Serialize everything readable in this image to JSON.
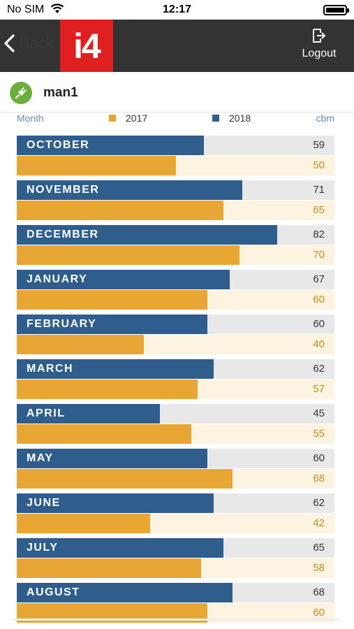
{
  "status_bar": {
    "carrier": "No SIM",
    "time": "12:17"
  },
  "header": {
    "back_label": "Back",
    "logo_text": "i4",
    "logout_label": "Logout"
  },
  "user": {
    "name": "man1"
  },
  "legend": {
    "left_label": "Month",
    "series_2017": "2017",
    "series_2018": "2018",
    "unit": "cbm"
  },
  "colors": {
    "series_2018": "#2f5e8d",
    "series_2017": "#e8a735",
    "header": "#333333",
    "logo": "#e02020",
    "user_icon": "#6cae3c"
  },
  "chart_data": {
    "type": "bar",
    "orientation": "horizontal",
    "unit": "cbm",
    "xlim": [
      0,
      100
    ],
    "categories": [
      "OCTOBER",
      "NOVEMBER",
      "DECEMBER",
      "JANUARY",
      "FEBRUARY",
      "MARCH",
      "APRIL",
      "MAY",
      "JUNE",
      "JULY",
      "AUGUST"
    ],
    "series": [
      {
        "name": "2018",
        "values": [
          59,
          71,
          82,
          67,
          60,
          62,
          45,
          60,
          62,
          65,
          68
        ]
      },
      {
        "name": "2017",
        "values": [
          50,
          65,
          70,
          60,
          40,
          57,
          55,
          68,
          42,
          58,
          60
        ]
      }
    ]
  }
}
